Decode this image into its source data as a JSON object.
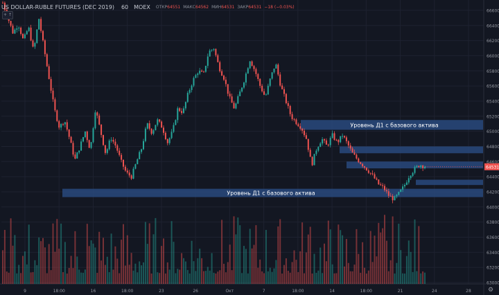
{
  "header": {
    "symbol": "US DOLLAR-RUBLE FUTURES (DEC 2019)",
    "timeframe": "60",
    "exchange": "MOEX",
    "open_label": "ОТКР",
    "open_value": "64551",
    "high_label": "МАКС",
    "high_value": "64562",
    "low_label": "МИН",
    "low_value": "64531",
    "close_label": "ЗАКР",
    "close_value": "64531",
    "change": "−18 (−0.03%)"
  },
  "toggle_label": "+ ↑",
  "settings_icon": "gear-icon",
  "colors": {
    "background": "#131722",
    "up": "#26a69a",
    "down": "#ef5350",
    "zone": "#2a4a80",
    "zone_text": "#ffffff",
    "axis_text": "#9598a1",
    "price_tag": "#ef5350"
  },
  "chart_data": {
    "type": "candlestick",
    "title": "US DOLLAR-RUBLE FUTURES (DEC 2019)",
    "price_range": [
      63000,
      66700
    ],
    "y_ticks": [
      63000,
      63200,
      63400,
      63600,
      63800,
      64000,
      64200,
      64400,
      64600,
      64800,
      65000,
      65200,
      65400,
      65600,
      65800,
      66000,
      66200,
      66400,
      66600
    ],
    "x_ticks": [
      "9",
      "18:00",
      "16",
      "18:00",
      "23",
      "26",
      "Окт",
      "7",
      "18:00",
      "14",
      "18:00",
      "21",
      "24",
      "28"
    ],
    "last_price": "64531",
    "price_path": [
      66700,
      66500,
      66300,
      66420,
      66200,
      66380,
      66050,
      66500,
      66100,
      65700,
      65300,
      65050,
      65150,
      64900,
      64620,
      64800,
      65000,
      64750,
      65300,
      65000,
      64700,
      64920,
      64800,
      64600,
      64450,
      64400,
      64600,
      64780,
      65100,
      64980,
      65150,
      65050,
      64850,
      65000,
      65300,
      65250,
      65500,
      65680,
      65800,
      65750,
      66050,
      66100,
      65850,
      65700,
      65450,
      65300,
      65500,
      65700,
      65950,
      65800,
      65600,
      65450,
      65700,
      65900,
      65600,
      65400,
      65200,
      65120,
      65050,
      64900,
      64550,
      64780,
      64900,
      64800,
      64950,
      64850,
      64950,
      64830,
      64700,
      64620,
      64550,
      64480,
      64400,
      64300,
      64250,
      64150,
      64100,
      64180,
      64280,
      64420,
      64500,
      64560,
      64531
    ],
    "annotations": [
      {
        "text": "Уровень Д1 с базового актива",
        "price_low": 65020,
        "price_high": 65150
      },
      {
        "text": "",
        "price_low": 64710,
        "price_high": 64800
      },
      {
        "text": "",
        "price_low": 64510,
        "price_high": 64600
      },
      {
        "text": "",
        "price_low": 64290,
        "price_high": 64360
      },
      {
        "text": "Уровень Д1 с базового актива",
        "price_low": 64130,
        "price_high": 64240
      }
    ]
  }
}
